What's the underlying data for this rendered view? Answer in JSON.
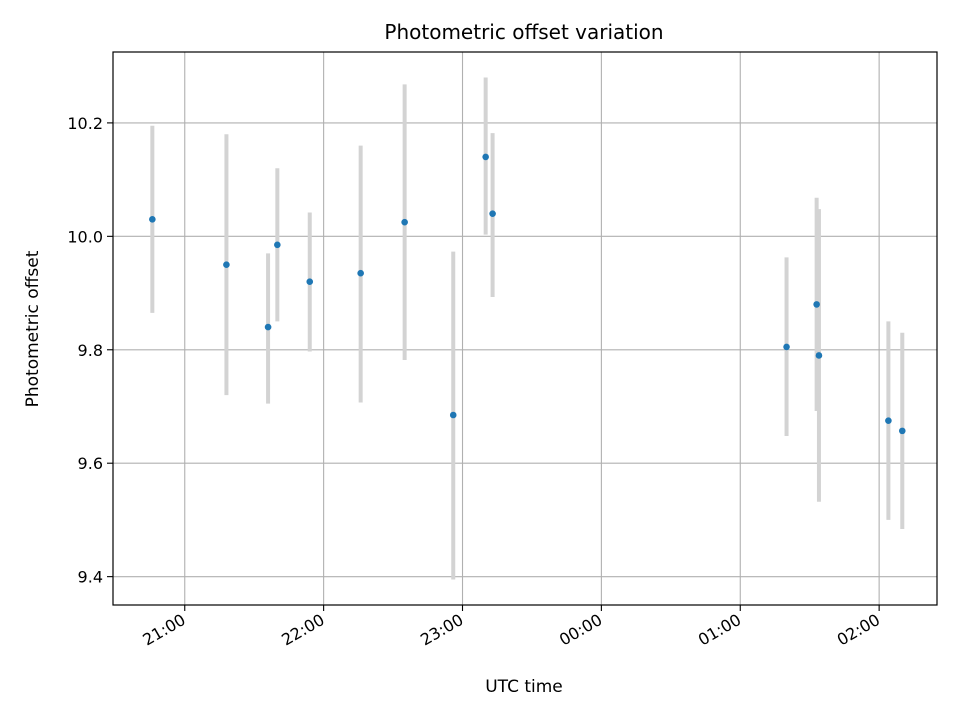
{
  "chart_data": {
    "type": "scatter",
    "title": "Photometric offset variation",
    "xlabel": "UTC time",
    "ylabel": "Photometric offset",
    "x_ticks": [
      {
        "x": "21:00"
      },
      {
        "x": "22:00"
      },
      {
        "x": "23:00"
      },
      {
        "x": "00:00"
      },
      {
        "x": "01:00"
      },
      {
        "x": "02:00"
      }
    ],
    "y_ticks": [
      "9.4",
      "9.6",
      "9.8",
      "10.0",
      "10.2"
    ],
    "xlim": [
      "20:29",
      "02:25"
    ],
    "ylim": [
      9.35,
      10.325
    ],
    "grid": true,
    "marker_color": "#1f77b4",
    "errorbar_color": "#d3d3d3",
    "points": [
      {
        "x": "20:46",
        "y": 10.03,
        "yerr_low": 9.865,
        "yerr_high": 10.195
      },
      {
        "x": "21:18",
        "y": 9.95,
        "yerr_low": 9.72,
        "yerr_high": 10.18
      },
      {
        "x": "21:36",
        "y": 9.84,
        "yerr_low": 9.705,
        "yerr_high": 9.97
      },
      {
        "x": "21:40",
        "y": 9.985,
        "yerr_low": 9.85,
        "yerr_high": 10.12
      },
      {
        "x": "21:54",
        "y": 9.92,
        "yerr_low": 9.797,
        "yerr_high": 10.042
      },
      {
        "x": "22:16",
        "y": 9.935,
        "yerr_low": 9.707,
        "yerr_high": 10.16
      },
      {
        "x": "22:35",
        "y": 10.025,
        "yerr_low": 9.782,
        "yerr_high": 10.268
      },
      {
        "x": "22:56",
        "y": 9.685,
        "yerr_low": 9.395,
        "yerr_high": 9.973
      },
      {
        "x": "23:10",
        "y": 10.14,
        "yerr_low": 10.003,
        "yerr_high": 10.28
      },
      {
        "x": "23:13",
        "y": 10.04,
        "yerr_low": 9.893,
        "yerr_high": 10.182
      },
      {
        "x": "01:20",
        "y": 9.805,
        "yerr_low": 9.648,
        "yerr_high": 9.963
      },
      {
        "x": "01:33",
        "y": 9.88,
        "yerr_low": 9.692,
        "yerr_high": 10.068
      },
      {
        "x": "01:34",
        "y": 9.79,
        "yerr_low": 9.532,
        "yerr_high": 10.048
      },
      {
        "x": "02:04",
        "y": 9.675,
        "yerr_low": 9.5,
        "yerr_high": 9.85
      },
      {
        "x": "02:10",
        "y": 9.657,
        "yerr_low": 9.484,
        "yerr_high": 9.83
      }
    ]
  }
}
